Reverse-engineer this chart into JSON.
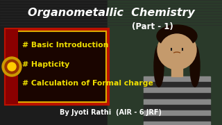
{
  "bg_color": "#1c1c1c",
  "bg_right_color": "#2a3a2a",
  "title_text": "Organometallic  Chemistry",
  "subtitle_text": "(Part - 1)",
  "bullet1": "# Basic Introduction",
  "bullet2": "# Hapticity",
  "bullet3": "# Calculation of Formal charge",
  "byline": "By Jyoti Rathi  (AIR - 6 JRF)",
  "title_color": "#ffffff",
  "subtitle_color": "#ffffff",
  "bullet_color": "#f0e000",
  "byline_color": "#ffffff",
  "box_border_outer": "#cc2200",
  "box_border_inner": "#ffcc00",
  "box_bg_color": "#1a0500",
  "title_fontsize": 11.5,
  "subtitle_fontsize": 8.5,
  "bullet_fontsize": 7.8,
  "byline_fontsize": 7.0,
  "face_color": "#c49a6c",
  "hair_color": "#1a0800",
  "shirt_dark": "#2a2a2a",
  "shirt_light": "#888888"
}
